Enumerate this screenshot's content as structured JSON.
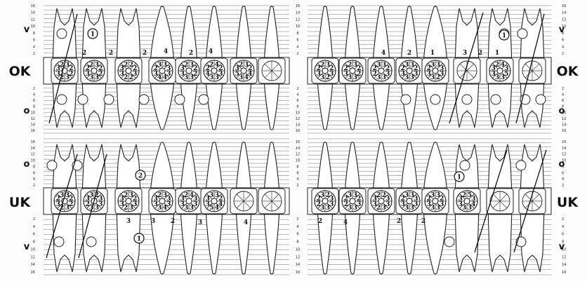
{
  "labels": {
    "upper_jaw": "OK",
    "lower_jaw": "UK",
    "buccal_short": "v",
    "oral_short": "o"
  },
  "depth_scale": [
    "16",
    "14",
    "12",
    "10",
    "8",
    "6",
    "4",
    "2"
  ],
  "depth_scale_inner": [
    "2",
    "4",
    "6",
    "8",
    "10",
    "12",
    "14",
    "16"
  ],
  "quadrants": {
    "upper_right_marks": [
      {
        "tooth": 2,
        "ring": [
          "3",
          "2",
          "4",
          "4",
          "3",
          "5",
          "3",
          "2"
        ]
      },
      {
        "tooth": 3,
        "ring": [
          "4",
          "2",
          "3",
          "3",
          "3",
          "4",
          "2",
          "2"
        ]
      },
      {
        "tooth": 4,
        "ring": [
          "3",
          "2",
          "2",
          "3",
          "3",
          "3",
          "3",
          "2"
        ]
      },
      {
        "tooth": 5,
        "ring": [
          "3",
          "3",
          "3",
          "4",
          "4",
          "3",
          "2",
          "3"
        ]
      },
      {
        "tooth": 6,
        "ring": [
          "2",
          "2",
          "3",
          "2",
          "2",
          "3",
          "3",
          "2"
        ]
      },
      {
        "tooth": 7,
        "ring": [
          "3",
          "2",
          "2",
          "3",
          "3",
          "3",
          "2",
          "2"
        ]
      },
      {
        "tooth": 8,
        "ring": [
          "3",
          "2",
          "2",
          "3",
          "2",
          "3",
          "3",
          "2"
        ]
      }
    ],
    "upper_left_marks": [
      {
        "tooth": 1,
        "ring": [
          "3",
          "2",
          "3",
          "2",
          "3",
          "3",
          "2",
          "2"
        ]
      },
      {
        "tooth": 2,
        "ring": [
          "3",
          "2",
          "2",
          "3",
          "3",
          "3",
          "2",
          "2"
        ]
      },
      {
        "tooth": 3,
        "ring": [
          "3",
          "2",
          "3",
          "3",
          "3",
          "2",
          "2",
          "3"
        ]
      },
      {
        "tooth": 4,
        "ring": [
          "3",
          "2",
          "3",
          "3",
          "3",
          "3",
          "2",
          "3"
        ]
      },
      {
        "tooth": 5,
        "ring": [
          "3",
          "3",
          "3",
          "2",
          "3",
          "3",
          "2",
          "3"
        ]
      },
      {
        "tooth": 7,
        "ring": [
          "4",
          "3",
          "5",
          "3",
          "3",
          "3",
          "3",
          "2"
        ]
      }
    ],
    "lower_right_marks": [
      {
        "tooth": 3,
        "ring": [
          "3",
          "2",
          "4",
          "4",
          "5",
          "3",
          "3",
          "3"
        ]
      },
      {
        "tooth": 4,
        "ring": [
          "4",
          "3",
          "3",
          "3",
          "3",
          "3",
          "3",
          "2"
        ]
      },
      {
        "tooth": 5,
        "ring": [
          "3",
          "3",
          "3",
          "4",
          "3",
          "3",
          "3",
          "2"
        ]
      },
      {
        "tooth": 6,
        "ring": [
          "3",
          "2",
          "3",
          "3",
          "2",
          "3",
          "3",
          "2"
        ]
      },
      {
        "tooth": 7,
        "ring": [
          "2",
          "3",
          "3",
          "3",
          "3",
          "2",
          "3",
          "3"
        ]
      },
      {
        "tooth": 8,
        "ring": [
          "3",
          "2",
          "2",
          "3",
          "2",
          "3",
          "2",
          "3"
        ]
      }
    ],
    "lower_left_marks": [
      {
        "tooth": 1,
        "ring": [
          "2",
          "3",
          "3",
          "3",
          "3",
          "2",
          "2",
          "3"
        ]
      },
      {
        "tooth": 2,
        "ring": [
          "3",
          "2",
          "3",
          "3",
          "3",
          "2",
          "2",
          "3"
        ]
      },
      {
        "tooth": 3,
        "ring": [
          "2",
          "3",
          "3",
          "3",
          "2",
          "3",
          "3",
          "2"
        ]
      },
      {
        "tooth": 4,
        "ring": [
          "3",
          "3",
          "3",
          "3",
          "3",
          "3",
          "2",
          "3"
        ]
      },
      {
        "tooth": 5,
        "ring": [
          "3",
          "2",
          "3",
          "3",
          "3",
          "3",
          "2",
          "3"
        ]
      },
      {
        "tooth": 6,
        "ring": [
          "5",
          "3",
          "4",
          "3",
          "3",
          "3",
          "3",
          "2"
        ]
      }
    ]
  },
  "extra_marks": {
    "ok_top_row_right": [
      "2",
      "2",
      "2",
      "4",
      "2",
      "4"
    ],
    "ok_top_row_left": [
      "4",
      "1",
      "2",
      "3",
      "2",
      "1"
    ],
    "uk_bottom_row_right": [
      "3",
      "3",
      "2",
      "3",
      "4"
    ],
    "uk_bottom_row_left": [
      "2",
      "4",
      "2",
      "2"
    ]
  },
  "circled_numbers": {
    "ok_right": "1",
    "ok_left": "1",
    "uk_right_top": "2",
    "uk_right_bottom": "1",
    "uk_left_top": "1"
  }
}
